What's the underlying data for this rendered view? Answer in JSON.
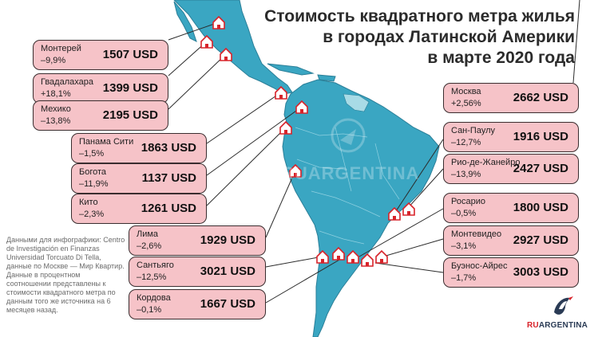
{
  "title": {
    "line1": "Стоимость квадратного метра жилья",
    "line2": "в городах Латинской Америки",
    "line3": "в марте 2020 года"
  },
  "cards": [
    {
      "id": "monterrey",
      "city": "Монтерей",
      "change": "–9,9%",
      "price": "1507 USD"
    },
    {
      "id": "guadalajara",
      "city": "Гвадалахара",
      "change": "+18,1%",
      "price": "1399 USD"
    },
    {
      "id": "mexico",
      "city": "Мехико",
      "change": "–13,8%",
      "price": "2195 USD"
    },
    {
      "id": "panama",
      "city": "Панама Сити",
      "change": "–1,5%",
      "price": "1863 USD"
    },
    {
      "id": "bogota",
      "city": "Богота",
      "change": "–11,9%",
      "price": "1137 USD"
    },
    {
      "id": "quito",
      "city": "Кито",
      "change": "–2,3%",
      "price": "1261 USD"
    },
    {
      "id": "lima",
      "city": "Лима",
      "change": "–2,6%",
      "price": "1929 USD"
    },
    {
      "id": "santiago",
      "city": "Сантьяго",
      "change": "–12,5%",
      "price": "3021 USD"
    },
    {
      "id": "cordoba",
      "city": "Кордова",
      "change": "–0,1%",
      "price": "1667 USD"
    },
    {
      "id": "moscow",
      "city": "Москва",
      "change": "+2,56%",
      "price": "2662 USD"
    },
    {
      "id": "saopaulo",
      "city": "Сан-Паулу",
      "change": "–12,7%",
      "price": "1916 USD"
    },
    {
      "id": "rio",
      "city": "Рио-де-Жанейро",
      "change": "–13,9%",
      "price": "2427 USD"
    },
    {
      "id": "rosario",
      "city": "Росарио",
      "change": "–0,5%",
      "price": "1800 USD"
    },
    {
      "id": "montevideo",
      "city": "Монтевидео",
      "change": "–3,1%",
      "price": "2927 USD"
    },
    {
      "id": "buenosaires",
      "city": "Буэнос-Айрес",
      "change": "–1,7%",
      "price": "3003 USD"
    }
  ],
  "note": "Данными для инфографики: Centro de Investigación en Finanzas Universidad Torcuato Di Tella, данные по Москве — Мир Квартир. Данные в процентном соотношении представлены к стоимости квадратного метра по данным того же источника на 6 месяцев назад.",
  "watermark": "RUARGENTINA",
  "logo": {
    "ru": "RU",
    "argentina": "ARGENTINA"
  },
  "colors": {
    "map": "#3aa6c2",
    "map_outline": "#2b7f98",
    "card_bg": "#f6c3c8",
    "accent": "#d8232a"
  }
}
